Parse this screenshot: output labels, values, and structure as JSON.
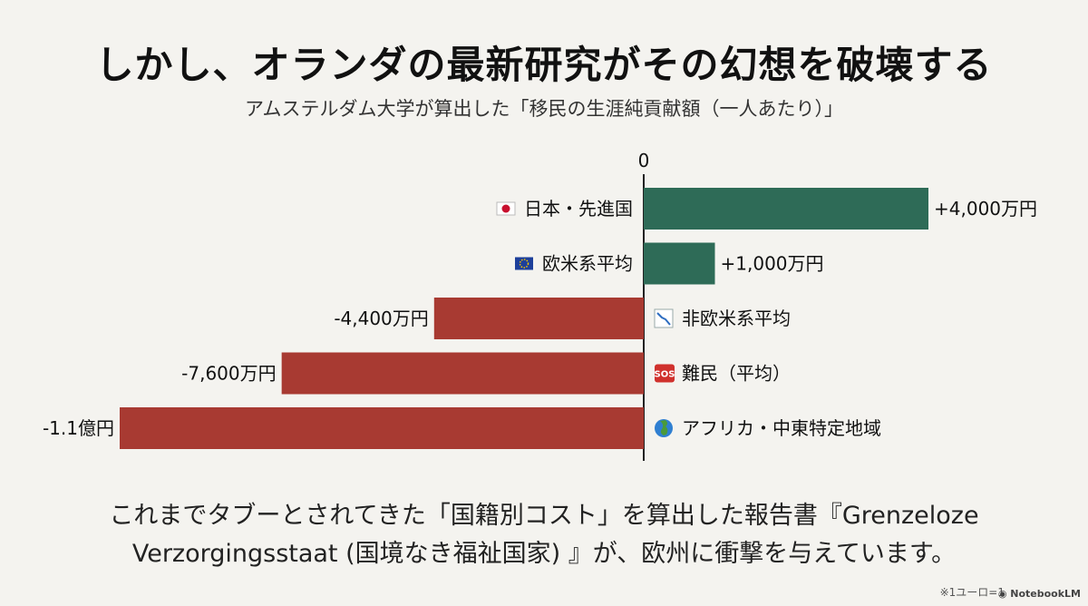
{
  "header": {
    "title": "しかし、オランダの最新研究がその幻想を破壊する",
    "subtitle": "アムステルダム大学が算出した「移民の生涯純貢献額（一人あたり）」"
  },
  "chart_data": {
    "type": "bar",
    "orientation": "horizontal",
    "zero_label": "0",
    "unit": "万円",
    "xlim": [
      -11000,
      4000
    ],
    "categories": [
      "日本・先進国",
      "欧米系平均",
      "非欧米系平均",
      "難民（平均）",
      "アフリカ・中東特定地域"
    ],
    "category_icons": [
      "flag-japan-icon",
      "flag-eu-icon",
      "chart-down-icon",
      "sos-icon",
      "globe-icon"
    ],
    "values": [
      4000,
      1000,
      -4400,
      -7600,
      -11000
    ],
    "value_labels": [
      "+4,000万円",
      "+1,000万円",
      "-4,400万円",
      "-7,600万円",
      "-1.1億円"
    ],
    "colors": {
      "positive": "#2e6b57",
      "negative": "#a83a32"
    }
  },
  "caption": {
    "line1": "これまでタブーとされてきた「国籍別コスト」を算出した報告書『Grenzeloze",
    "line2": "Verzorgingsstaat (国境なき福祉国家) 』が、欧州に衝撃を与えています。"
  },
  "footnote": "※1ユーロ=1",
  "brand": "NotebookLM"
}
